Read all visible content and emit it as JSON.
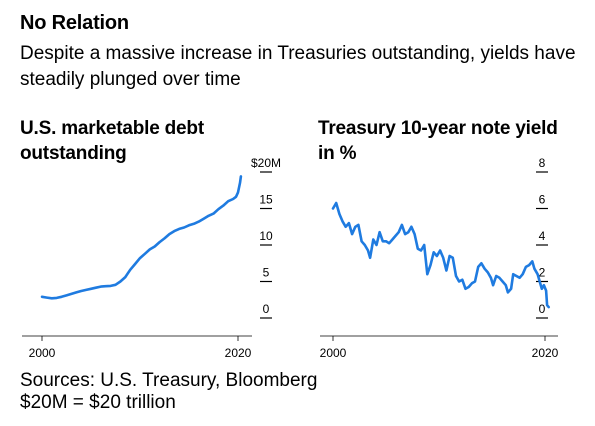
{
  "headline": "No Relation",
  "subhead": "Despite a massive increase in Treasuries outstanding, yields have steadily plunged over time",
  "footer": {
    "sources": "Sources: U.S. Treasury, Bloomberg",
    "note": "$20M = $20 trillion"
  },
  "colors": {
    "series": "#1f7be0",
    "axis": "#000000",
    "background": "#ffffff"
  },
  "chart_data": [
    {
      "type": "line",
      "title": "U.S. marketable debt outstanding",
      "xlabel": "",
      "ylabel": "",
      "xlim": [
        2000,
        2020
      ],
      "ylim": [
        0,
        20
      ],
      "x_ticks": [
        2000,
        2020
      ],
      "x_tick_labels": [
        "2000",
        "2020"
      ],
      "y_ticks": [
        0,
        5,
        10,
        15,
        20
      ],
      "y_tick_labels": [
        "0",
        "5",
        "10",
        "15",
        "$20M"
      ],
      "grid": false,
      "series": [
        {
          "values": [
            [
              2000,
              2.9
            ],
            [
              2000.5,
              2.8
            ],
            [
              2001,
              2.7
            ],
            [
              2001.5,
              2.75
            ],
            [
              2002,
              2.9
            ],
            [
              2002.5,
              3.1
            ],
            [
              2003,
              3.3
            ],
            [
              2003.5,
              3.5
            ],
            [
              2004,
              3.7
            ],
            [
              2004.5,
              3.85
            ],
            [
              2005,
              4.0
            ],
            [
              2005.5,
              4.15
            ],
            [
              2006,
              4.3
            ],
            [
              2006.5,
              4.35
            ],
            [
              2007,
              4.4
            ],
            [
              2007.5,
              4.55
            ],
            [
              2008,
              5.0
            ],
            [
              2008.5,
              5.6
            ],
            [
              2009,
              6.6
            ],
            [
              2009.5,
              7.4
            ],
            [
              2010,
              8.2
            ],
            [
              2010.5,
              8.8
            ],
            [
              2011,
              9.4
            ],
            [
              2011.5,
              9.8
            ],
            [
              2012,
              10.4
            ],
            [
              2012.5,
              10.9
            ],
            [
              2013,
              11.5
            ],
            [
              2013.5,
              11.9
            ],
            [
              2014,
              12.2
            ],
            [
              2014.5,
              12.4
            ],
            [
              2015,
              12.7
            ],
            [
              2015.5,
              12.9
            ],
            [
              2016,
              13.2
            ],
            [
              2016.5,
              13.6
            ],
            [
              2017,
              14.0
            ],
            [
              2017.5,
              14.3
            ],
            [
              2018,
              14.9
            ],
            [
              2018.5,
              15.4
            ],
            [
              2019,
              16.0
            ],
            [
              2019.5,
              16.3
            ],
            [
              2019.8,
              16.6
            ],
            [
              2020,
              17.2
            ],
            [
              2020.2,
              18.5
            ],
            [
              2020.3,
              19.4
            ]
          ]
        }
      ]
    },
    {
      "type": "line",
      "title": "Treasury 10-year note yield in %",
      "xlabel": "",
      "ylabel": "",
      "xlim": [
        2000,
        2020
      ],
      "ylim": [
        0,
        8
      ],
      "x_ticks": [
        2000,
        2020
      ],
      "x_tick_labels": [
        "2000",
        "2020"
      ],
      "y_ticks": [
        0,
        2,
        4,
        6,
        8
      ],
      "y_tick_labels": [
        "0",
        "2",
        "4",
        "6",
        "8"
      ],
      "grid": false,
      "series": [
        {
          "values": [
            [
              2000,
              6.0
            ],
            [
              2000.3,
              6.3
            ],
            [
              2000.6,
              5.7
            ],
            [
              2000.9,
              5.3
            ],
            [
              2001.2,
              5.0
            ],
            [
              2001.5,
              5.2
            ],
            [
              2001.8,
              4.6
            ],
            [
              2002.1,
              5.0
            ],
            [
              2002.4,
              5.1
            ],
            [
              2002.7,
              4.2
            ],
            [
              2003.0,
              4.0
            ],
            [
              2003.3,
              3.7
            ],
            [
              2003.5,
              3.3
            ],
            [
              2003.8,
              4.3
            ],
            [
              2004.1,
              4.0
            ],
            [
              2004.4,
              4.7
            ],
            [
              2004.7,
              4.2
            ],
            [
              2005.0,
              4.2
            ],
            [
              2005.3,
              4.1
            ],
            [
              2005.6,
              4.3
            ],
            [
              2005.9,
              4.5
            ],
            [
              2006.2,
              4.7
            ],
            [
              2006.5,
              5.1
            ],
            [
              2006.8,
              4.6
            ],
            [
              2007.1,
              4.7
            ],
            [
              2007.4,
              5.0
            ],
            [
              2007.7,
              4.6
            ],
            [
              2008.0,
              3.8
            ],
            [
              2008.3,
              3.7
            ],
            [
              2008.6,
              4.0
            ],
            [
              2008.9,
              2.4
            ],
            [
              2009.2,
              2.9
            ],
            [
              2009.5,
              3.6
            ],
            [
              2009.8,
              3.4
            ],
            [
              2010.1,
              3.7
            ],
            [
              2010.4,
              3.3
            ],
            [
              2010.7,
              2.6
            ],
            [
              2011.0,
              3.4
            ],
            [
              2011.3,
              3.3
            ],
            [
              2011.6,
              2.3
            ],
            [
              2011.9,
              2.0
            ],
            [
              2012.2,
              2.1
            ],
            [
              2012.5,
              1.6
            ],
            [
              2012.8,
              1.7
            ],
            [
              2013.1,
              1.9
            ],
            [
              2013.4,
              2.0
            ],
            [
              2013.7,
              2.8
            ],
            [
              2014.0,
              3.0
            ],
            [
              2014.3,
              2.7
            ],
            [
              2014.6,
              2.5
            ],
            [
              2014.9,
              2.2
            ],
            [
              2015.1,
              1.8
            ],
            [
              2015.4,
              2.3
            ],
            [
              2015.7,
              2.2
            ],
            [
              2016.0,
              2.0
            ],
            [
              2016.3,
              1.8
            ],
            [
              2016.5,
              1.4
            ],
            [
              2016.8,
              1.6
            ],
            [
              2017.0,
              2.4
            ],
            [
              2017.3,
              2.3
            ],
            [
              2017.6,
              2.2
            ],
            [
              2017.9,
              2.4
            ],
            [
              2018.2,
              2.8
            ],
            [
              2018.5,
              2.9
            ],
            [
              2018.8,
              3.1
            ],
            [
              2019.0,
              2.7
            ],
            [
              2019.3,
              2.4
            ],
            [
              2019.5,
              2.0
            ],
            [
              2019.7,
              1.6
            ],
            [
              2019.9,
              1.8
            ],
            [
              2020.1,
              1.5
            ],
            [
              2020.2,
              0.7
            ],
            [
              2020.35,
              0.6
            ]
          ]
        }
      ]
    }
  ]
}
